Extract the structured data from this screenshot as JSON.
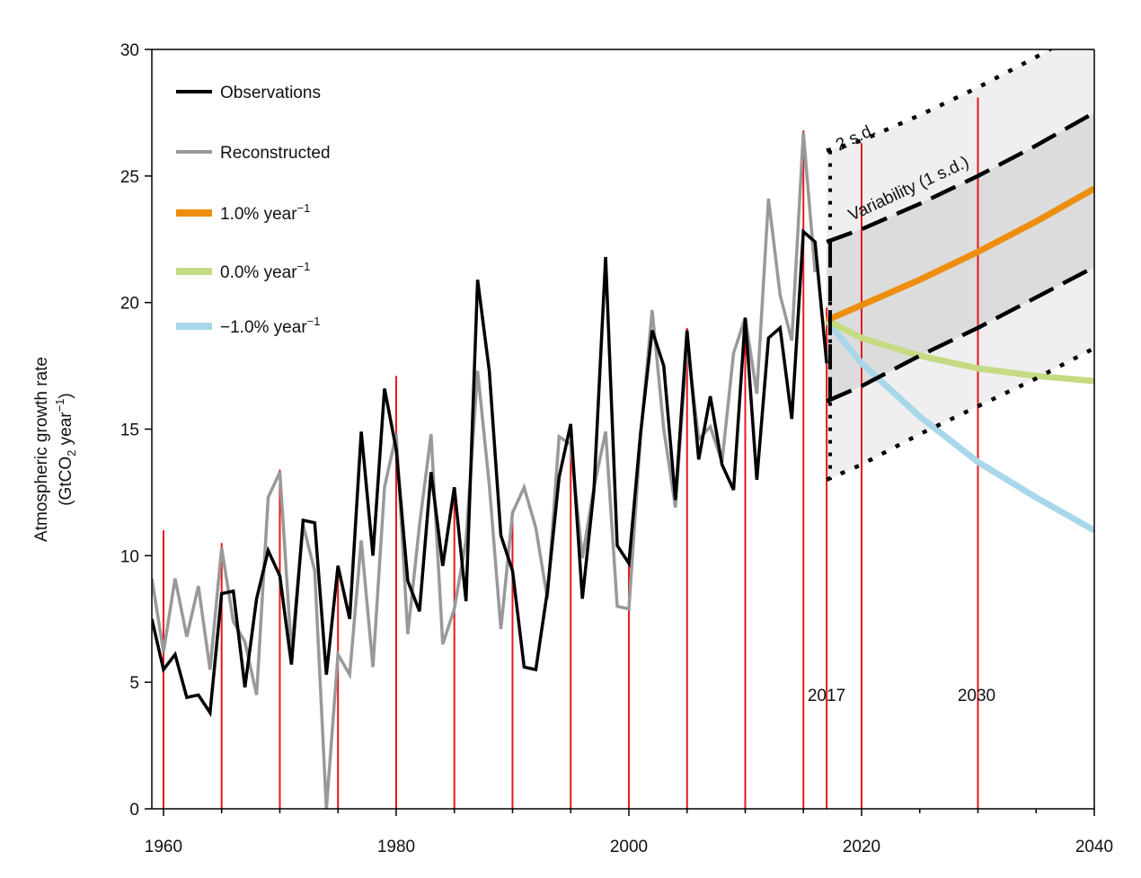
{
  "chart_data": {
    "type": "line",
    "ylabel_line1": "Atmospheric growth rate",
    "ylabel_line2": "(GtCO",
    "ylabel_sub": "2",
    "ylabel_line2_end": " year",
    "ylabel_sup": "−1",
    "ylabel_close": ")",
    "xlim": [
      1959,
      2040
    ],
    "ylim": [
      0,
      30
    ],
    "x_ticks": [
      1960,
      1980,
      2000,
      2020,
      2040
    ],
    "y_ticks": [
      0,
      5,
      10,
      15,
      20,
      25,
      30
    ],
    "legend": {
      "placement": "top-left",
      "items": [
        {
          "label": "Observations",
          "color": "#000000"
        },
        {
          "label": "Reconstructed",
          "color": "#999999"
        },
        {
          "label": "1.0% year",
          "sup": "−1",
          "color": "#EE8E0E"
        },
        {
          "label": "0.0% year",
          "sup": "−1",
          "color": "#C5DB82"
        },
        {
          "label": "−1.0% year",
          "sup": "−1",
          "color": "#A8D7EA"
        }
      ]
    },
    "annotations": {
      "two_sd": "2 s.d.",
      "variability": "Variability (1 s.d.)",
      "year_2017": "2017",
      "year_2030": "2030"
    },
    "series": [
      {
        "name": "Observations",
        "color": "#000000",
        "x": [
          1959,
          1960,
          1961,
          1962,
          1963,
          1964,
          1965,
          1966,
          1967,
          1968,
          1969,
          1970,
          1971,
          1972,
          1973,
          1974,
          1975,
          1976,
          1977,
          1978,
          1979,
          1980,
          1981,
          1982,
          1983,
          1984,
          1985,
          1986,
          1987,
          1988,
          1989,
          1990,
          1991,
          1992,
          1993,
          1994,
          1995,
          1996,
          1997,
          1998,
          1999,
          2000,
          2001,
          2002,
          2003,
          2004,
          2005,
          2006,
          2007,
          2008,
          2009,
          2010,
          2011,
          2012,
          2013,
          2014,
          2015,
          2016,
          2017
        ],
        "y": [
          7.5,
          5.5,
          6.1,
          4.4,
          4.5,
          3.8,
          8.5,
          8.6,
          4.8,
          8.3,
          10.2,
          9.2,
          5.7,
          11.4,
          11.3,
          5.3,
          9.6,
          7.5,
          14.9,
          10.0,
          16.6,
          14.2,
          9.0,
          7.8,
          13.3,
          9.6,
          12.7,
          8.2,
          20.9,
          17.3,
          10.8,
          9.4,
          5.6,
          5.5,
          8.6,
          13.1,
          15.2,
          8.3,
          12.6,
          21.8,
          10.4,
          9.7,
          14.8,
          18.9,
          17.5,
          12.2,
          18.9,
          13.8,
          16.3,
          13.6,
          12.6,
          19.4,
          13.0,
          18.6,
          19.0,
          15.4,
          22.8,
          22.4,
          17.6
        ]
      },
      {
        "name": "Reconstructed",
        "color": "#999999",
        "x": [
          1959,
          1960,
          1961,
          1962,
          1963,
          1964,
          1965,
          1966,
          1967,
          1968,
          1969,
          1970,
          1971,
          1972,
          1973,
          1974,
          1975,
          1976,
          1977,
          1978,
          1979,
          1980,
          1981,
          1982,
          1983,
          1984,
          1985,
          1986,
          1987,
          1988,
          1989,
          1990,
          1991,
          1992,
          1993,
          1994,
          1995,
          1996,
          1997,
          1998,
          1999,
          2000,
          2001,
          2002,
          2003,
          2004,
          2005,
          2006,
          2007,
          2008,
          2009,
          2010,
          2011,
          2012,
          2013,
          2014,
          2015,
          2016
        ],
        "y": [
          9.1,
          6.2,
          9.1,
          6.8,
          8.8,
          5.5,
          10.3,
          7.4,
          6.6,
          4.5,
          12.3,
          13.3,
          6.2,
          11.2,
          9.4,
          0.0,
          6.1,
          5.3,
          10.6,
          5.6,
          12.7,
          14.8,
          6.9,
          11.2,
          14.8,
          6.5,
          7.9,
          10.6,
          17.3,
          12.8,
          7.1,
          11.7,
          12.7,
          11.1,
          8.3,
          14.7,
          14.4,
          9.9,
          12.7,
          14.9,
          8.0,
          7.9,
          14.7,
          19.7,
          15.0,
          11.9,
          18.4,
          14.6,
          15.1,
          13.7,
          18.0,
          19.4,
          16.4,
          24.1,
          20.3,
          18.5,
          26.7,
          21.2
        ]
      },
      {
        "name": "1.0% year",
        "color": "#EE8E0E",
        "x": [
          2017,
          2020,
          2025,
          2030,
          2035,
          2040
        ],
        "y": [
          19.3,
          19.9,
          20.9,
          22.0,
          23.2,
          24.5
        ]
      },
      {
        "name": "0.0% year",
        "color": "#C5DB82",
        "x": [
          2017,
          2020,
          2025,
          2030,
          2035,
          2040
        ],
        "y": [
          19.3,
          18.6,
          17.9,
          17.4,
          17.1,
          16.9
        ]
      },
      {
        "name": "−1.0% year",
        "color": "#A8D7EA",
        "x": [
          2017,
          2020,
          2025,
          2030,
          2035,
          2040
        ],
        "y": [
          19.3,
          17.6,
          15.5,
          13.7,
          12.3,
          11.0
        ]
      }
    ],
    "variability_band_1sd": {
      "color": "#DCDCDC",
      "x": [
        2017,
        2020,
        2025,
        2030,
        2035,
        2040
      ],
      "upper": [
        22.4,
        22.9,
        23.9,
        25.0,
        26.2,
        27.5
      ],
      "lower": [
        16.1,
        16.7,
        17.9,
        19.0,
        20.2,
        21.4
      ]
    },
    "variability_band_2sd": {
      "color": "#EFEFEF",
      "x": [
        2017,
        2020,
        2025,
        2030,
        2035,
        2040
      ],
      "upper": [
        26.0,
        26.4,
        27.4,
        28.5,
        29.7,
        31.0
      ],
      "lower": [
        13.0,
        13.6,
        14.8,
        15.9,
        17.0,
        18.2
      ]
    },
    "red_year_lines": {
      "color": "#E3191C",
      "x": [
        1960,
        1965,
        1970,
        1975,
        1980,
        1985,
        1990,
        1995,
        2000,
        2005,
        2010,
        2015,
        2017,
        2020,
        2030
      ],
      "top": [
        11.0,
        10.5,
        13.4,
        9.6,
        17.1,
        12.7,
        11.8,
        15.2,
        9.7,
        19.0,
        19.4,
        26.8,
        19.8,
        26.3,
        28.1
      ]
    }
  }
}
